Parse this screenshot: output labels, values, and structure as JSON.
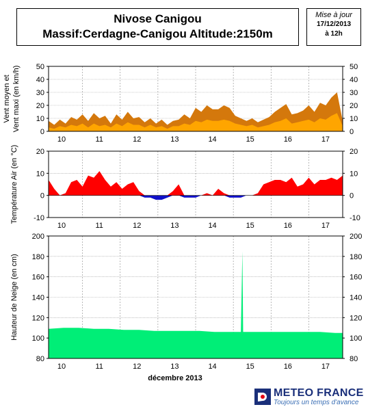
{
  "header": {
    "title_line1": "Nivose Canigou",
    "title_line2": "Massif:Cerdagne-Canigou Altitude:2150m",
    "mise_label": "Mise à jour",
    "date": "17/12/2013",
    "time": "à 12h"
  },
  "logo": {
    "brand": "METEO FRANCE",
    "tagline": "Toujours un temps d'avance"
  },
  "colors": {
    "wind_max": "#d4780c",
    "wind_mean": "#ffa500",
    "temp_pos": "#ff0000",
    "temp_neg": "#1010c8",
    "snow": "#00ee77"
  },
  "chart_data": [
    {
      "type": "area",
      "ylabel_line1": "Vent moyen et",
      "ylabel_line2": "Vent maxi (en km/h)",
      "ylim": [
        0,
        50
      ],
      "yticks": [
        0,
        10,
        20,
        30,
        40,
        50
      ],
      "xlim": [
        9.6,
        17.4
      ],
      "xticks": [
        "10",
        "11",
        "12",
        "13",
        "14",
        "15",
        "16",
        "17"
      ],
      "grid": true,
      "x": [
        9.6,
        9.75,
        9.9,
        10.05,
        10.2,
        10.35,
        10.5,
        10.65,
        10.8,
        10.95,
        11.1,
        11.25,
        11.4,
        11.55,
        11.7,
        11.85,
        12.0,
        12.15,
        12.3,
        12.45,
        12.6,
        12.75,
        12.9,
        13.05,
        13.2,
        13.35,
        13.5,
        13.65,
        13.8,
        13.95,
        14.1,
        14.25,
        14.4,
        14.55,
        14.7,
        14.85,
        15.0,
        15.15,
        15.3,
        15.45,
        15.6,
        15.75,
        15.9,
        16.05,
        16.2,
        16.35,
        16.5,
        16.65,
        16.8,
        16.95,
        17.1,
        17.25,
        17.4
      ],
      "series": [
        {
          "values": [
            8,
            5,
            9,
            6,
            11,
            9,
            13,
            8,
            14,
            10,
            12,
            6,
            13,
            9,
            15,
            10,
            11,
            7,
            10,
            6,
            9,
            5,
            8,
            9,
            13,
            10,
            18,
            15,
            20,
            17,
            17,
            20,
            18,
            12,
            10,
            8,
            10,
            7,
            9,
            11,
            15,
            18,
            21,
            13,
            14,
            16,
            20,
            15,
            22,
            20,
            26,
            30,
            8
          ]
        },
        {
          "values": [
            3,
            2,
            4,
            3,
            5,
            4,
            6,
            3,
            6,
            4,
            5,
            3,
            6,
            4,
            7,
            5,
            5,
            3,
            5,
            3,
            4,
            2,
            4,
            4,
            6,
            5,
            8,
            7,
            9,
            8,
            8,
            9,
            8,
            6,
            5,
            4,
            5,
            3,
            4,
            5,
            7,
            8,
            10,
            6,
            7,
            8,
            9,
            7,
            10,
            9,
            12,
            14,
            4
          ]
        }
      ]
    },
    {
      "type": "area",
      "ylabel": "Température Air (en °C)",
      "ylim": [
        -10,
        20
      ],
      "yticks": [
        -10,
        0,
        10,
        20
      ],
      "xlim": [
        9.6,
        17.4
      ],
      "xticks": [
        "10",
        "11",
        "12",
        "13",
        "14",
        "15",
        "16",
        "17"
      ],
      "grid": true,
      "x": [
        9.6,
        9.75,
        9.9,
        10.05,
        10.2,
        10.35,
        10.5,
        10.65,
        10.8,
        10.95,
        11.1,
        11.25,
        11.4,
        11.55,
        11.7,
        11.85,
        12.0,
        12.15,
        12.3,
        12.45,
        12.6,
        12.75,
        12.9,
        13.05,
        13.2,
        13.35,
        13.5,
        13.65,
        13.8,
        13.95,
        14.1,
        14.25,
        14.4,
        14.55,
        14.7,
        14.85,
        15.0,
        15.15,
        15.3,
        15.45,
        15.6,
        15.75,
        15.9,
        16.05,
        16.2,
        16.35,
        16.5,
        16.65,
        16.8,
        16.95,
        17.1,
        17.25,
        17.4
      ],
      "series": [
        {
          "values": [
            7,
            3,
            0,
            1,
            6,
            7,
            4,
            9,
            8,
            11,
            7,
            4,
            6,
            3,
            5,
            6,
            2,
            -1,
            -1,
            -2,
            -2,
            -1,
            2,
            5,
            -1,
            -1,
            -1,
            0,
            1,
            0,
            3,
            1,
            -1,
            -1,
            -1,
            0,
            0,
            1,
            5,
            6,
            7,
            7,
            6,
            8,
            4,
            5,
            8,
            5,
            7,
            7,
            8,
            7,
            9
          ]
        }
      ]
    },
    {
      "type": "area",
      "xlabel": "décembre 2013",
      "ylabel": "Hauteur de Neige (en cm)",
      "ylim": [
        80,
        200
      ],
      "yticks": [
        80,
        100,
        120,
        140,
        160,
        180,
        200
      ],
      "xlim": [
        9.6,
        17.4
      ],
      "xticks": [
        "10",
        "11",
        "12",
        "13",
        "14",
        "15",
        "16",
        "17"
      ],
      "grid": true,
      "x": [
        9.6,
        10.0,
        10.4,
        10.8,
        11.2,
        11.6,
        12.0,
        12.4,
        12.8,
        13.2,
        13.6,
        14.0,
        14.4,
        14.7,
        14.74,
        14.76,
        14.8,
        15.2,
        15.6,
        16.0,
        16.4,
        16.8,
        17.2,
        17.4
      ],
      "series": [
        {
          "values": [
            109,
            110,
            110,
            109,
            109,
            108,
            108,
            107,
            107,
            107,
            107,
            106,
            106,
            106,
            185,
            106,
            106,
            106,
            106,
            106,
            106,
            106,
            105,
            105
          ]
        }
      ]
    }
  ]
}
